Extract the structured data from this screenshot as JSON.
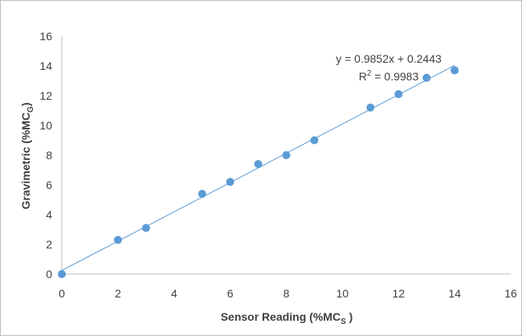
{
  "chart_data": {
    "type": "scatter",
    "xlabel": {
      "main": "Sensor Reading (%MC",
      "sub": "S",
      "close": " )"
    },
    "ylabel": {
      "main": "Gravimetric  (%MC",
      "sub": "G",
      "close": ")"
    },
    "xlim": [
      0,
      16
    ],
    "ylim": [
      0,
      16
    ],
    "xticks": [
      "0",
      "2",
      "4",
      "6",
      "8",
      "10",
      "12",
      "14",
      "16"
    ],
    "yticks": [
      "0",
      "2",
      "4",
      "6",
      "8",
      "10",
      "12",
      "14",
      "16"
    ],
    "grid": false,
    "series": [
      {
        "color": "#5B9BD5",
        "x": [
          0,
          2,
          3,
          5,
          6,
          7,
          8,
          9,
          11,
          12,
          13,
          14
        ],
        "y": [
          0,
          2.3,
          3.1,
          5.4,
          6.2,
          7.4,
          8.0,
          9.0,
          11.2,
          12.1,
          13.2,
          13.7
        ]
      }
    ],
    "trendline": {
      "slope": 0.9852,
      "intercept": 0.2443,
      "x_range": [
        0,
        14
      ],
      "color": "#5B9BD5",
      "equation": "y = 0.9852x + 0.2443",
      "r2_label": {
        "main": "R",
        "sup": "2",
        "rest": " = 0.9983"
      }
    }
  }
}
